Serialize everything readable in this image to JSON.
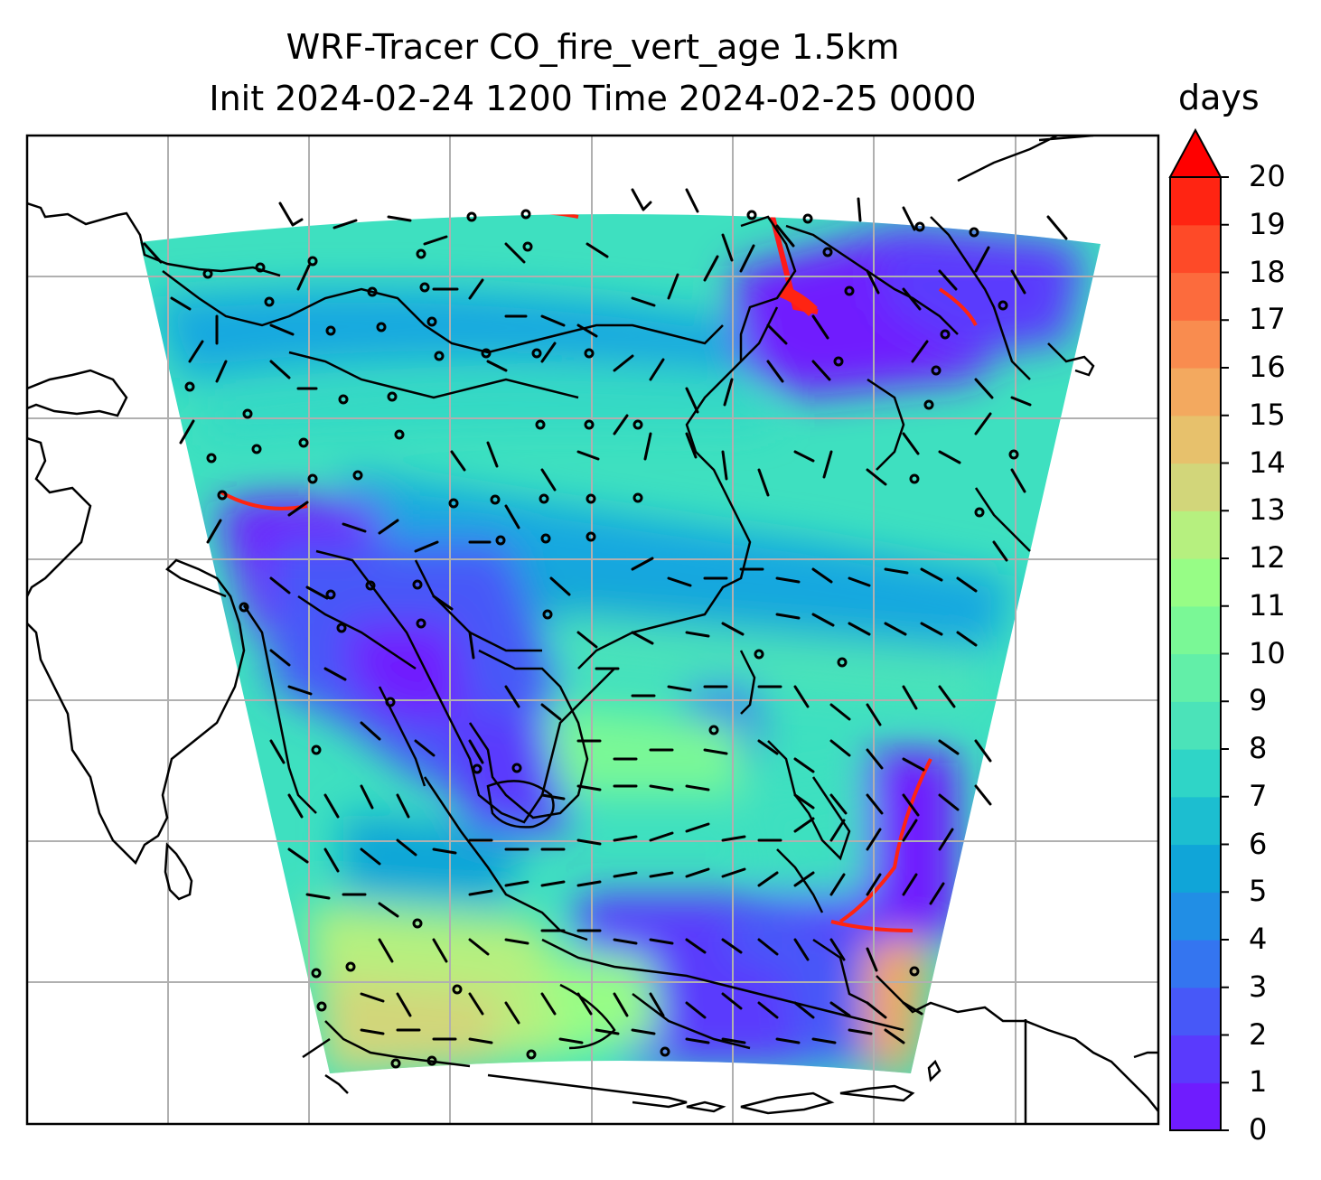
{
  "title": {
    "line1": "WRF-Tracer CO_fire_vert_age 1.5km",
    "line2": "Init 2024-02-24 1200 Time 2024-02-25 0000"
  },
  "colorbar": {
    "label": "days",
    "min": 0,
    "max": 20,
    "extend": "max",
    "ticks": [
      "0",
      "1",
      "2",
      "3",
      "4",
      "5",
      "6",
      "7",
      "8",
      "9",
      "10",
      "11",
      "12",
      "13",
      "14",
      "15",
      "16",
      "17",
      "18",
      "19",
      "20"
    ],
    "colors": [
      "#6f1cfe",
      "#5a3afd",
      "#4758f8",
      "#3475f0",
      "#218ee5",
      "#10a5d8",
      "#1cbed0",
      "#2fd5c7",
      "#4be3b9",
      "#62efa8",
      "#7af896",
      "#97fd86",
      "#b6f07f",
      "#d2d67a",
      "#e7c16c",
      "#f3a95f",
      "#f98c4f",
      "#fc6b3d",
      "#fe4a28",
      "#ff2412"
    ],
    "over_color": "#ff0000"
  },
  "map": {
    "grid": "on",
    "features": [
      "coastlines",
      "country-borders",
      "wind-barbs",
      "calm-wind-circles"
    ],
    "legend": "colorbar-right"
  }
}
